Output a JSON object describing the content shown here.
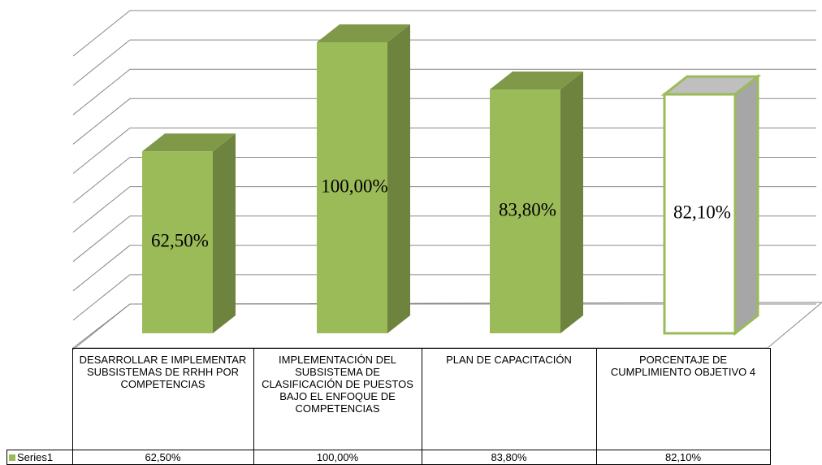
{
  "chart_data": {
    "type": "bar3d",
    "categories": [
      "DESARROLLAR E IMPLEMENTAR SUBSISTEMAS DE RRHH POR COMPETENCIAS",
      "IMPLEMENTACIÓN DEL SUBSISTEMA DE CLASIFICACIÓN DE PUESTOS BAJO EL ENFOQUE DE COMPETENCIAS",
      "PLAN DE CAPACITACIÓN",
      "PORCENTAJE DE CUMPLIMIENTO OBJETIVO 4"
    ],
    "series": [
      {
        "name": "Series1",
        "color": "#9bbb59",
        "values": [
          62.5,
          100,
          83.8,
          82.1
        ],
        "value_labels": [
          "62,50%",
          "100,00%",
          "83,80%",
          "82,10%"
        ],
        "point_colors": [
          "#9bbb59",
          "#9bbb59",
          "#9bbb59",
          "#ffffff"
        ]
      }
    ],
    "ylim": [
      0,
      100
    ],
    "yticks": [
      0,
      10,
      20,
      30,
      40,
      50,
      60,
      70,
      80,
      90,
      100
    ],
    "grid": true
  }
}
